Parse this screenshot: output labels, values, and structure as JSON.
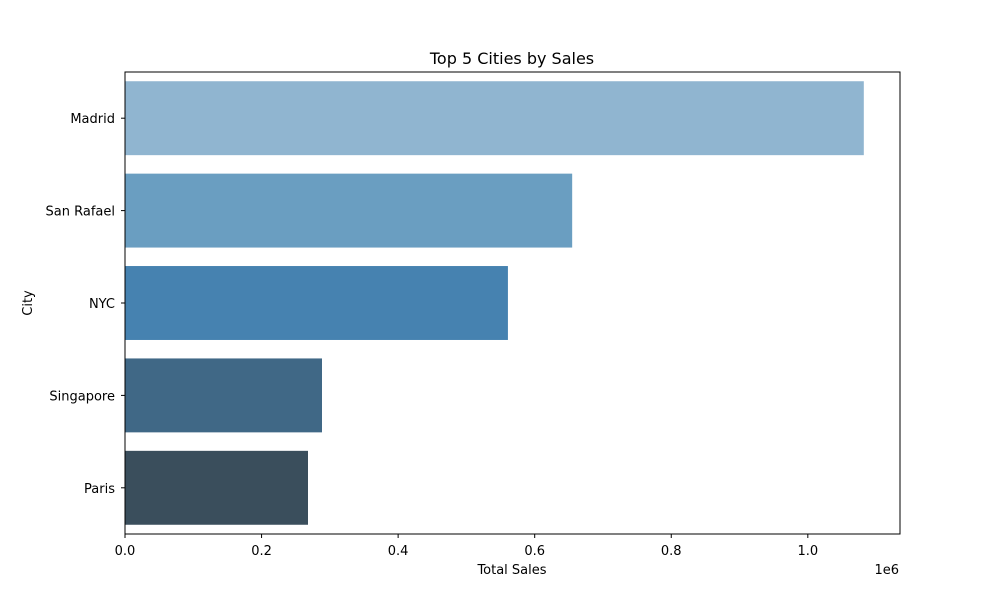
{
  "chart_data": {
    "type": "bar",
    "orientation": "horizontal",
    "title": "Top 5 Cities by Sales",
    "xlabel": "Total Sales",
    "ylabel": "City",
    "x_offset_text": "1e6",
    "categories": [
      "Madrid",
      "San Rafael",
      "NYC",
      "Singapore",
      "Paris"
    ],
    "values": [
      1082000,
      654900,
      560800,
      288500,
      268000
    ],
    "xlim": [
      0,
      1135000
    ],
    "x_ticks": [
      0,
      200000,
      400000,
      600000,
      800000,
      1000000
    ],
    "x_tick_labels": [
      "0.0",
      "0.2",
      "0.4",
      "0.6",
      "0.8",
      "1.0"
    ],
    "bar_colors": [
      "#90b5d0",
      "#6a9ec1",
      "#4682b0",
      "#406886",
      "#3a4e5c"
    ],
    "grid": false,
    "legend": "none"
  }
}
